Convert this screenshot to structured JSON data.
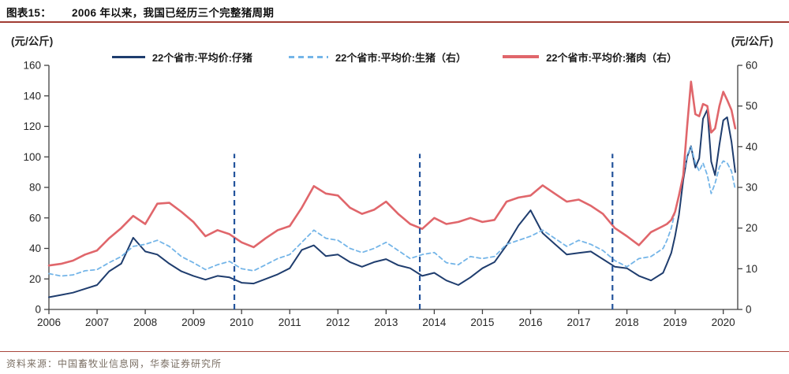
{
  "figure": {
    "label": "图表15：",
    "title": "2006 年以来，我国已经历三个完整猪周期",
    "source": "资料来源：中国畜牧业信息网，华泰证券研究所"
  },
  "colors": {
    "piglet_line": "#1f3d6e",
    "hog_line": "#74b5e8",
    "pork_line": "#e0666b",
    "cycle_divider": "#24549c",
    "title_rule": "#a13d33",
    "footer_rule": "#a8463c",
    "axis": "#404040",
    "tick_text": "#262626"
  },
  "chart_data": {
    "type": "line",
    "title": "2006 年以来，我国已经历三个完整猪周期",
    "legend_position": "top",
    "grid": false,
    "left_axis": {
      "unit": "(元/公斤)",
      "min": 0,
      "max": 160,
      "ticks": [
        0,
        20,
        40,
        60,
        80,
        100,
        120,
        140,
        160
      ]
    },
    "right_axis": {
      "unit": "(元/公斤)",
      "min": 0,
      "max": 60,
      "ticks": [
        0,
        10,
        20,
        30,
        40,
        50,
        60
      ]
    },
    "x_axis": {
      "min": 2006,
      "max": 2020.3,
      "ticks": [
        2006,
        2007,
        2008,
        2009,
        2010,
        2011,
        2012,
        2013,
        2014,
        2015,
        2016,
        2017,
        2018,
        2019,
        2020
      ]
    },
    "cycle_dividers": {
      "x": [
        2009.85,
        2013.7,
        2017.7
      ],
      "top_value_left_axis": 102
    },
    "x": [
      2006.0,
      2006.25,
      2006.5,
      2006.75,
      2007.0,
      2007.25,
      2007.5,
      2007.75,
      2008.0,
      2008.25,
      2008.5,
      2008.75,
      2009.0,
      2009.25,
      2009.5,
      2009.75,
      2010.0,
      2010.25,
      2010.5,
      2010.75,
      2011.0,
      2011.25,
      2011.5,
      2011.75,
      2012.0,
      2012.25,
      2012.5,
      2012.75,
      2013.0,
      2013.25,
      2013.5,
      2013.75,
      2014.0,
      2014.25,
      2014.5,
      2014.75,
      2015.0,
      2015.25,
      2015.5,
      2015.75,
      2016.0,
      2016.25,
      2016.5,
      2016.75,
      2017.0,
      2017.25,
      2017.5,
      2017.75,
      2018.0,
      2018.25,
      2018.5,
      2018.75,
      2018.83,
      2018.92,
      2019.0,
      2019.08,
      2019.17,
      2019.25,
      2019.33,
      2019.42,
      2019.5,
      2019.58,
      2019.67,
      2019.75,
      2019.83,
      2019.92,
      2020.0,
      2020.08,
      2020.17,
      2020.25
    ],
    "series": [
      {
        "name": "22个省市:平均价:仔猪",
        "axis": "left",
        "style": "solid",
        "color": "#1f3d6e",
        "width": 2,
        "values": [
          8,
          9.5,
          11,
          13.5,
          16,
          25,
          30,
          47,
          38,
          36,
          30,
          25,
          22,
          19.5,
          22,
          21,
          17.5,
          17,
          20,
          23,
          27,
          39,
          42,
          35,
          36,
          31,
          28,
          31,
          33,
          29,
          27,
          22,
          24,
          19,
          16,
          21,
          27,
          31,
          42,
          55,
          65,
          50,
          43,
          36,
          37,
          38,
          33,
          28,
          27,
          22,
          19,
          24,
          30,
          37,
          48,
          62,
          85,
          100,
          107,
          93,
          99,
          125,
          131,
          97,
          88,
          108,
          124,
          126,
          110,
          90
        ]
      },
      {
        "name": "22个省市:平均价:生猪（右）",
        "axis": "right",
        "style": "dashed",
        "color": "#74b5e8",
        "width": 1.8,
        "values": [
          8.8,
          8.2,
          8.5,
          9.5,
          9.8,
          11.5,
          13,
          15.5,
          16,
          17,
          15.5,
          13,
          11.5,
          9.8,
          11,
          11.8,
          10,
          9.5,
          11,
          12.5,
          13.5,
          16.5,
          19.5,
          17.5,
          17,
          15,
          14,
          15,
          16.5,
          14.5,
          12.5,
          13.5,
          14,
          11.5,
          11,
          13,
          12.5,
          13,
          16,
          17,
          18,
          19.5,
          17.5,
          15.5,
          17,
          16,
          14.5,
          12,
          10.5,
          12.5,
          13,
          15,
          17,
          20,
          24,
          28,
          33,
          38,
          40,
          36,
          34,
          36,
          33,
          28.5,
          31,
          35,
          36.5,
          36,
          34,
          29.5
        ]
      },
      {
        "name": "22个省市:平均价:猪肉（右）",
        "axis": "right",
        "style": "solid",
        "color": "#e0666b",
        "width": 2.6,
        "values": [
          10.8,
          11.2,
          12,
          13.5,
          14.5,
          17.5,
          20,
          23,
          21,
          26,
          26.2,
          24,
          21.5,
          18,
          19.5,
          18.5,
          16.5,
          15.3,
          17.5,
          19.5,
          20.5,
          25,
          30.3,
          28.5,
          28,
          25,
          23.5,
          24.5,
          26.5,
          23.5,
          21,
          19.8,
          22.5,
          21,
          21.5,
          22.5,
          21.5,
          22,
          26.5,
          27.5,
          28,
          30.5,
          28.5,
          26.5,
          27,
          25.5,
          23.5,
          20,
          18,
          15.8,
          19,
          20.5,
          21,
          22,
          24,
          28,
          33,
          45,
          56,
          48,
          47.5,
          50.5,
          50,
          43.5,
          44.5,
          50,
          53.5,
          51.5,
          49,
          44.5
        ]
      }
    ]
  }
}
